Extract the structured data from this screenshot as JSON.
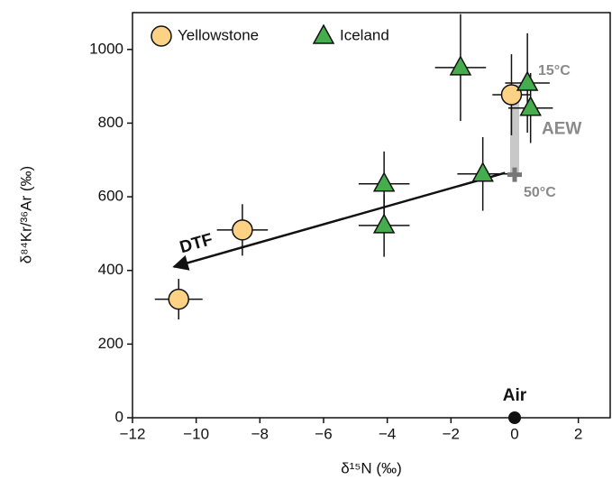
{
  "chart_data": {
    "type": "scatter",
    "x_label": "δ¹⁵N (‰)",
    "y_label": "δ⁸⁴Kr/³⁶Ar (‰)",
    "xlim": [
      -12,
      3
    ],
    "ylim": [
      0,
      1100
    ],
    "xticks": [
      {
        "value": -12,
        "label": "−12"
      },
      {
        "value": -10,
        "label": "−10"
      },
      {
        "value": -8,
        "label": "−8"
      },
      {
        "value": -6,
        "label": "−6"
      },
      {
        "value": -4,
        "label": "−4"
      },
      {
        "value": -2,
        "label": "−2"
      },
      0,
      2
    ],
    "yticks": [
      0,
      200,
      400,
      600,
      800,
      1000
    ],
    "legend": "upper left",
    "series": [
      {
        "name": "Yellowstone",
        "color": "#fdd285",
        "marker": "circle",
        "x": [
          -10.55,
          -8.55,
          -0.1
        ],
        "values": [
          322,
          510,
          877
        ],
        "x_err": [
          0.75,
          0.8,
          0.6
        ],
        "y_err": [
          55,
          70,
          110
        ]
      },
      {
        "name": "Iceland",
        "color": "#45ad4d",
        "marker": "triangle",
        "x": [
          -4.1,
          -4.1,
          -1.7,
          -1.0,
          0.4,
          0.5
        ],
        "values": [
          635,
          522,
          951,
          662,
          909,
          841
        ],
        "x_err": [
          0.8,
          0.8,
          0.8,
          0.8,
          0.7,
          0.7
        ],
        "y_err": [
          88,
          85,
          145,
          100,
          135,
          95
        ]
      }
    ],
    "air": {
      "label": "Air",
      "x": 0,
      "y": 0
    },
    "aew": {
      "label": "AEW",
      "x": 0,
      "y": [
        660,
        905
      ],
      "top_label": "15°C",
      "bottom_label": "50°C"
    },
    "dtf": {
      "label": "DTF",
      "x": [
        -0.3,
        -10.7
      ],
      "y": [
        665,
        410
      ]
    }
  }
}
